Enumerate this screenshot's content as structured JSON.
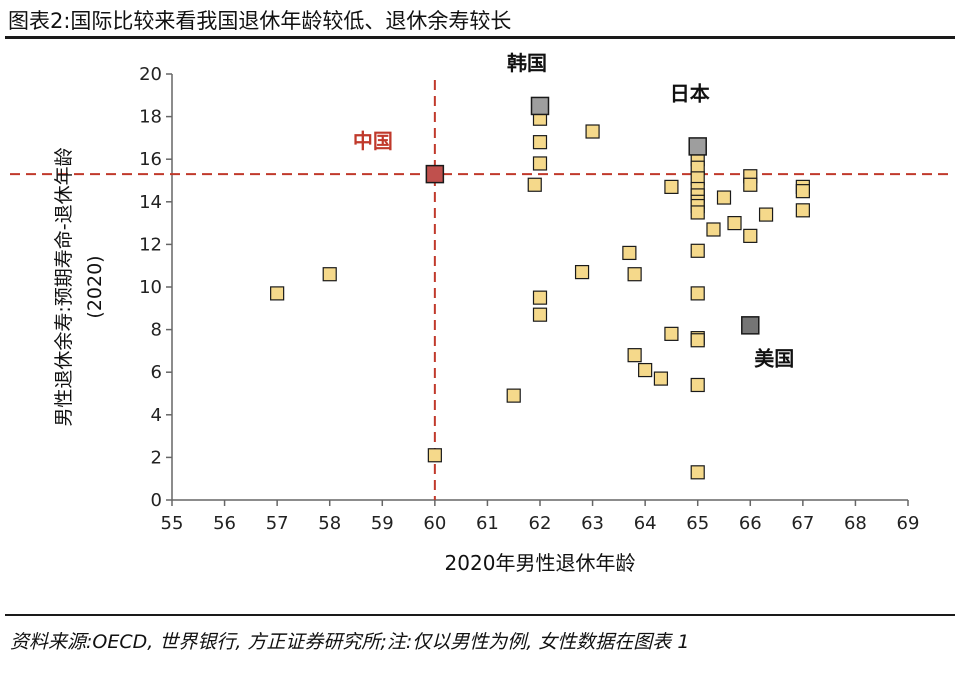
{
  "title": "图表2:国际比较来看我国退休年龄较低、退休余寿较长",
  "source_note": "资料来源:OECD, 世界银行, 方正证券研究所;注:仅以男性为例, 女性数据在图表 1",
  "colors": {
    "marker_fill": "#F5D98B",
    "marker_stroke": "#1a1a1a",
    "highlight_fill": "#9E9E9E",
    "us_fill": "#757575",
    "china_fill": "#C0504D",
    "ref_line": "#C0392B"
  },
  "chart_data": {
    "type": "scatter",
    "xlabel": "2020年男性退休年龄",
    "ylabel": "男性退休余寿:预期寿命-退休年龄\n(2020)",
    "xlim": [
      55,
      69
    ],
    "ylim": [
      0,
      20
    ],
    "x_ticks": [
      55,
      56,
      57,
      58,
      59,
      60,
      61,
      62,
      63,
      64,
      65,
      66,
      67,
      68,
      69
    ],
    "y_ticks": [
      0,
      2,
      4,
      6,
      8,
      10,
      12,
      14,
      16,
      18,
      20
    ],
    "grid": false,
    "reference_lines": {
      "x": 60,
      "y": 15.3
    },
    "points": [
      {
        "x": 57,
        "y": 9.7
      },
      {
        "x": 58,
        "y": 10.6
      },
      {
        "x": 60,
        "y": 2.1
      },
      {
        "x": 61.5,
        "y": 4.9
      },
      {
        "x": 61.9,
        "y": 14.8
      },
      {
        "x": 62,
        "y": 15.8
      },
      {
        "x": 62,
        "y": 16.8
      },
      {
        "x": 62,
        "y": 17.9
      },
      {
        "x": 62,
        "y": 9.5
      },
      {
        "x": 62,
        "y": 8.7
      },
      {
        "x": 62.8,
        "y": 10.7
      },
      {
        "x": 63,
        "y": 17.3
      },
      {
        "x": 63.7,
        "y": 11.6
      },
      {
        "x": 63.8,
        "y": 10.6
      },
      {
        "x": 63.8,
        "y": 6.8
      },
      {
        "x": 64,
        "y": 6.1
      },
      {
        "x": 64.3,
        "y": 5.7
      },
      {
        "x": 64.5,
        "y": 14.7
      },
      {
        "x": 64.5,
        "y": 7.8
      },
      {
        "x": 65,
        "y": 16.0
      },
      {
        "x": 65,
        "y": 15.6
      },
      {
        "x": 65,
        "y": 15.1
      },
      {
        "x": 65,
        "y": 14.6
      },
      {
        "x": 65,
        "y": 14.3
      },
      {
        "x": 65,
        "y": 14.0
      },
      {
        "x": 65,
        "y": 13.8
      },
      {
        "x": 65,
        "y": 13.5
      },
      {
        "x": 65,
        "y": 11.7
      },
      {
        "x": 65,
        "y": 9.7
      },
      {
        "x": 65,
        "y": 7.6
      },
      {
        "x": 65,
        "y": 7.5
      },
      {
        "x": 65,
        "y": 5.4
      },
      {
        "x": 65,
        "y": 1.3
      },
      {
        "x": 65.3,
        "y": 12.7
      },
      {
        "x": 65.5,
        "y": 14.2
      },
      {
        "x": 65.7,
        "y": 13.0
      },
      {
        "x": 66,
        "y": 15.2
      },
      {
        "x": 66,
        "y": 14.8
      },
      {
        "x": 66,
        "y": 12.4
      },
      {
        "x": 66.3,
        "y": 13.4
      },
      {
        "x": 67,
        "y": 14.7
      },
      {
        "x": 67,
        "y": 14.5
      },
      {
        "x": 67,
        "y": 13.6
      }
    ],
    "highlighted": [
      {
        "label": "韩国",
        "x": 62,
        "y": 18.5,
        "style": "highlight"
      },
      {
        "label": "日本",
        "x": 65,
        "y": 16.6,
        "style": "highlight"
      },
      {
        "label": "美国",
        "x": 66,
        "y": 8.2,
        "style": "us"
      },
      {
        "label": "中国",
        "x": 60,
        "y": 15.3,
        "style": "china"
      }
    ]
  }
}
